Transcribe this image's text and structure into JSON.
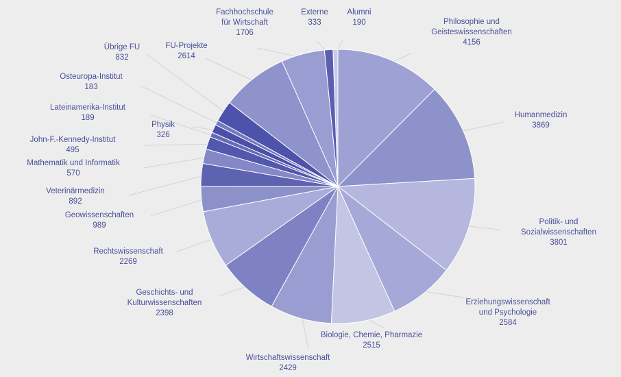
{
  "chart_data": {
    "type": "pie",
    "title": "",
    "grid": false,
    "legend": "none",
    "start_angle_deg": 90,
    "direction": "clockwise",
    "slices": [
      {
        "label_lines": [
          "Philosophie und",
          "Geisteswissenschaften"
        ],
        "value": 4156,
        "value_text": "4156",
        "color": "#9ea1d3"
      },
      {
        "label_lines": [
          "Humanmedizin"
        ],
        "value": 3869,
        "value_text": "3869",
        "color": "#8e92cb"
      },
      {
        "label_lines": [
          "Politik- und",
          "Sozialwissenschaften"
        ],
        "value": 3801,
        "value_text": "3801",
        "color": "#b5b7de"
      },
      {
        "label_lines": [
          "Erziehungswissenschaft",
          "und Psychologie"
        ],
        "value": 2584,
        "value_text": "2584",
        "color": "#a6a9d7"
      },
      {
        "label_lines": [
          "Biologie, Chemie, Pharmazie"
        ],
        "value": 2515,
        "value_text": "2515",
        "color": "#c3c5e5"
      },
      {
        "label_lines": [
          "Wirtschaftswissenschaft"
        ],
        "value": 2429,
        "value_text": "2429",
        "color": "#9a9dd1"
      },
      {
        "label_lines": [
          "Geschichts- und",
          "Kulturwissenschaften"
        ],
        "value": 2398,
        "value_text": "2398",
        "color": "#7e82c3"
      },
      {
        "label_lines": [
          "Rechtswissenschaft"
        ],
        "value": 2269,
        "value_text": "2269",
        "color": "#a9acd9"
      },
      {
        "label_lines": [
          "Geowissenschaften"
        ],
        "value": 989,
        "value_text": "989",
        "color": "#8d91ca"
      },
      {
        "label_lines": [
          "Veterinärmedizin"
        ],
        "value": 892,
        "value_text": "892",
        "color": "#5d62b1"
      },
      {
        "label_lines": [
          "Mathematik und Informatik"
        ],
        "value": 570,
        "value_text": "570",
        "color": "#8488c6"
      },
      {
        "label_lines": [
          "John-F.-Kennedy-Institut"
        ],
        "value": 495,
        "value_text": "495",
        "color": "#5258ad"
      },
      {
        "label_lines": [
          "Lateinamerika-Institut"
        ],
        "value": 189,
        "value_text": "189",
        "color": "#676cb6"
      },
      {
        "label_lines": [
          "Physik"
        ],
        "value": 326,
        "value_text": "326",
        "color": "#4a50a8"
      },
      {
        "label_lines": [
          "Osteuropa-Institut"
        ],
        "value": 183,
        "value_text": "183",
        "color": "#7579bd"
      },
      {
        "label_lines": [
          "Übrige FU"
        ],
        "value": 832,
        "value_text": "832",
        "color": "#4d53aa"
      },
      {
        "label_lines": [
          "FU-Projekte"
        ],
        "value": 2614,
        "value_text": "2614",
        "color": "#8f93cb"
      },
      {
        "label_lines": [
          "Fachhochschule",
          "für Wirtschaft"
        ],
        "value": 1706,
        "value_text": "1706",
        "color": "#9a9dd1"
      },
      {
        "label_lines": [
          "Externe"
        ],
        "value": 333,
        "value_text": "333",
        "color": "#5a5fb0"
      },
      {
        "label_lines": [
          "Alumni"
        ],
        "value": 190,
        "value_text": "190",
        "color": "#c9cbe8"
      }
    ]
  }
}
